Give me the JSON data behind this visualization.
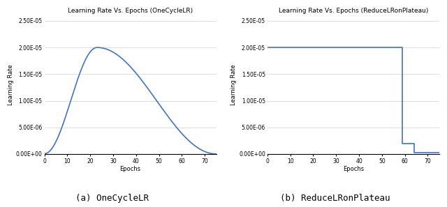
{
  "title_left": "Learning Rate Vs. Epochs (OneCycleLR)",
  "title_right": "Learning Rate Vs. Epochs (ReduceLRonPlateau)",
  "xlabel": "Epochs",
  "ylabel": "Learning Rate",
  "caption_left": "(a) OneCycleLR",
  "caption_right": "(b) ReduceLRonPlateau",
  "line_color": "#4472c4",
  "line_width": 1.2,
  "ylim": [
    0,
    2.6e-05
  ],
  "xlim_left": [
    0,
    75
  ],
  "xlim_right": [
    0,
    75
  ],
  "yticks": [
    0.0,
    5e-06,
    1e-05,
    1.5e-05,
    2e-05,
    2.5e-05
  ],
  "ytick_labels": [
    "0.00E+00",
    "5.00E-06",
    "1.00E-05",
    "1.50E-05",
    "2.00E-05",
    "2.50E-05"
  ],
  "xticks": [
    0,
    10,
    20,
    30,
    40,
    50,
    60,
    70
  ],
  "onecycle_peak_epoch": 23,
  "onecycle_max_lr": 2e-05,
  "onecycle_init_lr": 5e-08,
  "onecycle_total_epochs": 75,
  "reduce_flat_lr": 2e-05,
  "reduce_drop1_epoch": 59,
  "reduce_drop1_lr": 2e-06,
  "reduce_drop2_epoch": 64,
  "reduce_drop2_lr": 2e-07,
  "reduce_total_epochs": 75,
  "background_color": "#ffffff",
  "grid_color": "#d0d0d0",
  "title_fontsize": 6.5,
  "label_fontsize": 6,
  "tick_fontsize": 5.5,
  "caption_fontsize": 9,
  "fig_width": 6.4,
  "fig_height": 2.97,
  "fig_dpi": 100
}
